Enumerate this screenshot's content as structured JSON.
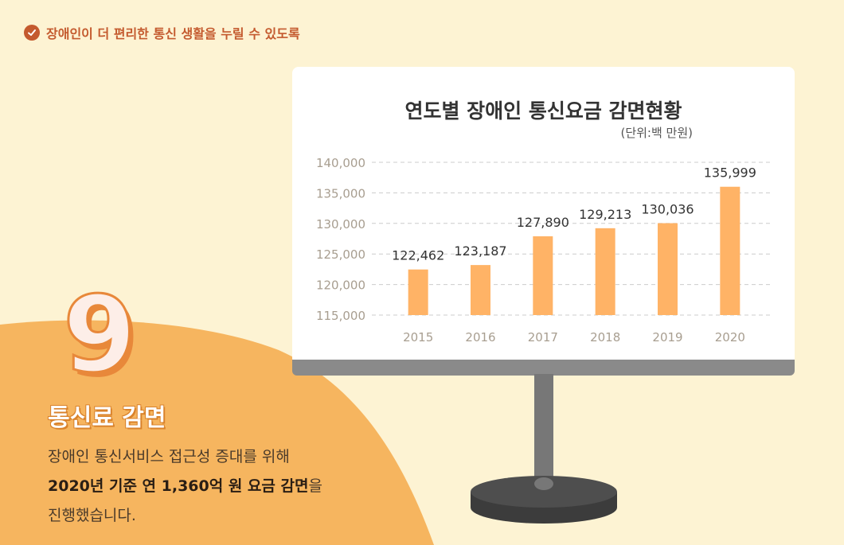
{
  "header": {
    "tagline": "장애인이 더 편리한 통신 생활을 누릴 수 있도록",
    "icon": "check-circle-icon"
  },
  "colors": {
    "background": "#fdf3d3",
    "accent": "#c45a2e",
    "blob": "#f6b55f",
    "bar": "#ffb366"
  },
  "section": {
    "number": "9",
    "title": "통신료 감면",
    "desc_line1": "장애인 통신서비스 접근성 증대를 위해",
    "desc_line2_bold": "2020년 기준 연 1,360억 원 요금 감면",
    "desc_line2_rest": "을",
    "desc_line3": "진행했습니다."
  },
  "chart_data": {
    "type": "bar",
    "title": "연도별 장애인 통신요금 감면현황",
    "unit": "(단위:백 만원)",
    "categories": [
      "2015",
      "2016",
      "2017",
      "2018",
      "2019",
      "2020"
    ],
    "values": [
      122462,
      123187,
      127890,
      129213,
      130036,
      135999
    ],
    "value_labels": [
      "122,462",
      "123,187",
      "127,890",
      "129,213",
      "130,036",
      "135,999"
    ],
    "ylim": [
      115000,
      140000
    ],
    "yticks": [
      115000,
      120000,
      125000,
      130000,
      135000,
      140000
    ],
    "ytick_labels": [
      "115,000",
      "120,000",
      "125,000",
      "130,000",
      "135,000",
      "140,000"
    ],
    "grid": true,
    "legend": "none"
  }
}
